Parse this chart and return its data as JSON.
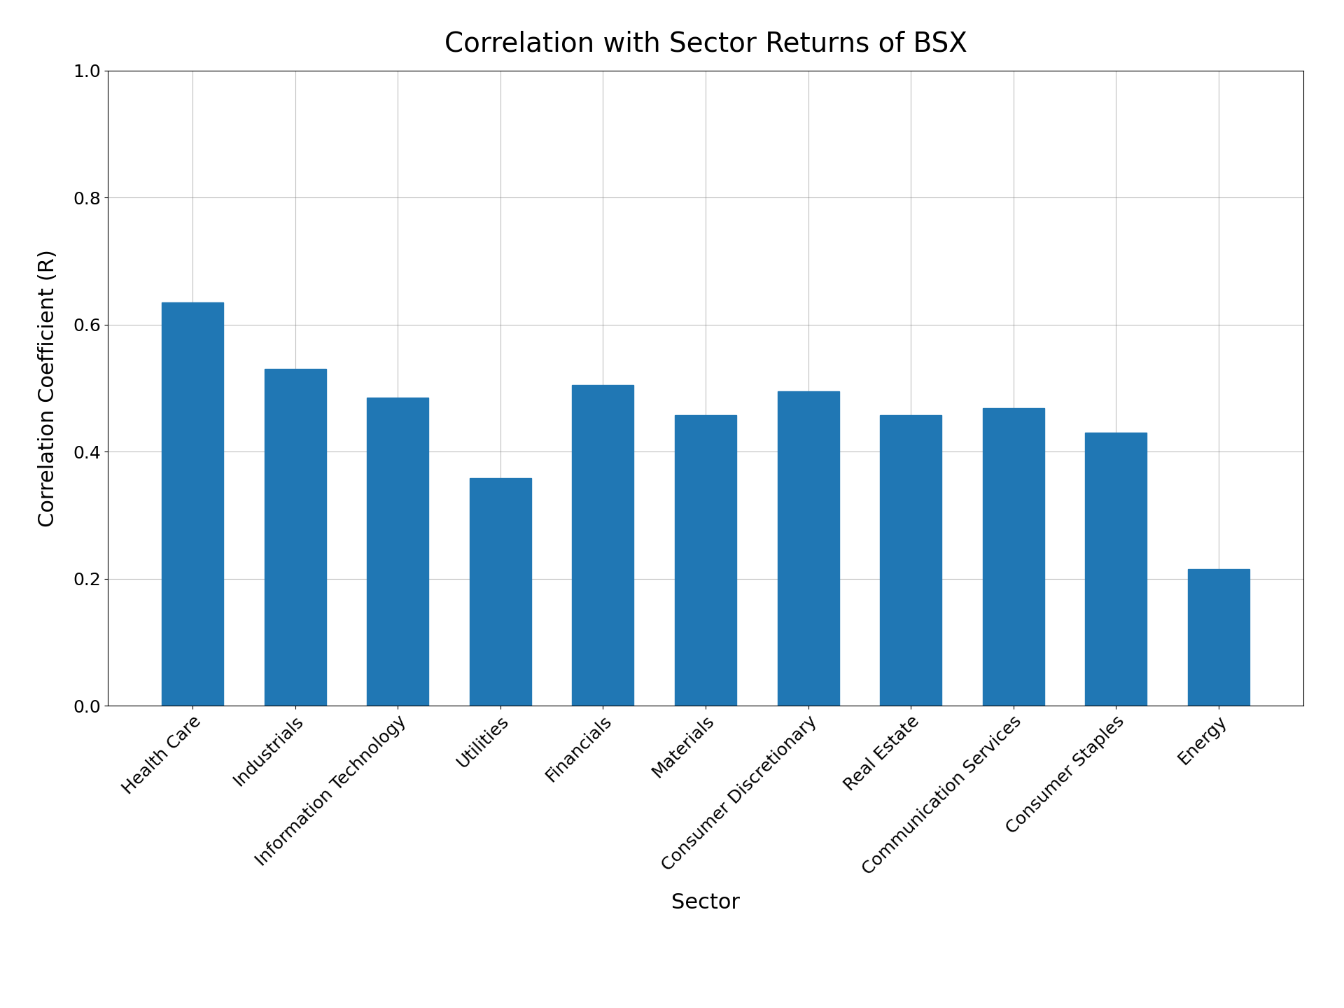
{
  "title": "Correlation with Sector Returns of BSX",
  "xlabel": "Sector",
  "ylabel": "Correlation Coefficient (R)",
  "categories": [
    "Health Care",
    "Industrials",
    "Information Technology",
    "Utilities",
    "Financials",
    "Materials",
    "Consumer Discretionary",
    "Real Estate",
    "Communication Services",
    "Consumer Staples",
    "Energy"
  ],
  "values": [
    0.635,
    0.53,
    0.485,
    0.358,
    0.505,
    0.458,
    0.495,
    0.458,
    0.468,
    0.43,
    0.215
  ],
  "bar_color": "#2077b4",
  "ylim": [
    0.0,
    1.0
  ],
  "yticks": [
    0.0,
    0.2,
    0.4,
    0.6,
    0.8,
    1.0
  ],
  "title_fontsize": 28,
  "label_fontsize": 22,
  "tick_fontsize": 18,
  "background_color": "#ffffff",
  "grid": true
}
